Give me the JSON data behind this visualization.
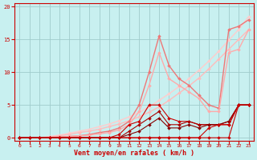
{
  "xlabel": "Vent moyen/en rafales ( km/h )",
  "xlim": [
    -0.5,
    23.5
  ],
  "ylim": [
    -0.5,
    20.5
  ],
  "yticks": [
    0,
    5,
    10,
    15,
    20
  ],
  "xticks": [
    0,
    1,
    2,
    3,
    4,
    5,
    6,
    7,
    8,
    9,
    10,
    11,
    12,
    13,
    14,
    15,
    16,
    17,
    18,
    19,
    20,
    21,
    22,
    23
  ],
  "background_color": "#c8f0f0",
  "grid_color": "#a0cccc",
  "lines": [
    {
      "x": [
        0,
        1,
        2,
        3,
        4,
        5,
        6,
        7,
        8,
        9,
        10,
        11,
        12,
        13,
        14,
        15,
        16,
        17,
        18,
        19,
        20,
        21,
        22,
        23
      ],
      "y": [
        0,
        0,
        0,
        0.2,
        0.4,
        0.7,
        1.0,
        1.3,
        1.7,
        2.1,
        2.6,
        3.2,
        3.9,
        4.7,
        5.7,
        6.7,
        7.8,
        9.0,
        10.3,
        11.7,
        13.2,
        14.9,
        16.5,
        18.5
      ],
      "color": "#ffcccc",
      "lw": 1.0,
      "ms": 2.0
    },
    {
      "x": [
        0,
        1,
        2,
        3,
        4,
        5,
        6,
        7,
        8,
        9,
        10,
        11,
        12,
        13,
        14,
        15,
        16,
        17,
        18,
        19,
        20,
        21,
        22,
        23
      ],
      "y": [
        0,
        0,
        0,
        0.1,
        0.3,
        0.5,
        0.8,
        1.0,
        1.3,
        1.7,
        2.1,
        2.6,
        3.2,
        3.9,
        4.7,
        5.7,
        6.8,
        7.9,
        9.1,
        10.5,
        12.0,
        13.5,
        15.0,
        16.5
      ],
      "color": "#ffbbbb",
      "lw": 1.0,
      "ms": 2.0
    },
    {
      "x": [
        0,
        1,
        2,
        3,
        4,
        5,
        6,
        7,
        8,
        9,
        10,
        11,
        12,
        13,
        14,
        15,
        16,
        17,
        18,
        19,
        20,
        21,
        22,
        23
      ],
      "y": [
        0,
        0,
        0,
        0,
        0.1,
        0.2,
        0.3,
        0.5,
        0.8,
        1.0,
        1.5,
        2.5,
        5.0,
        10.0,
        15.5,
        11.0,
        9.0,
        8.0,
        6.5,
        5.0,
        4.5,
        16.5,
        17.0,
        18.0
      ],
      "color": "#ee7777",
      "lw": 1.0,
      "ms": 2.0
    },
    {
      "x": [
        0,
        1,
        2,
        3,
        4,
        5,
        6,
        7,
        8,
        9,
        10,
        11,
        12,
        13,
        14,
        15,
        16,
        17,
        18,
        19,
        20,
        21,
        22,
        23
      ],
      "y": [
        0,
        0,
        0,
        0,
        0.1,
        0.2,
        0.3,
        0.4,
        0.6,
        0.8,
        1.2,
        2.0,
        4.0,
        8.0,
        13.0,
        9.0,
        8.0,
        7.0,
        6.0,
        4.0,
        4.0,
        13.0,
        13.5,
        16.5
      ],
      "color": "#ffaaaa",
      "lw": 1.0,
      "ms": 2.0
    },
    {
      "x": [
        0,
        1,
        2,
        3,
        4,
        5,
        6,
        7,
        8,
        9,
        10,
        11,
        12,
        13,
        14,
        15,
        16,
        17,
        18,
        19,
        20,
        21,
        22,
        23
      ],
      "y": [
        0,
        0,
        0,
        0,
        0,
        0,
        0,
        0,
        0,
        0,
        0,
        0,
        0,
        0,
        0,
        0,
        0,
        0,
        0,
        0,
        0,
        0,
        5,
        5
      ],
      "color": "#cc0000",
      "lw": 0.8,
      "ms": 2.0
    },
    {
      "x": [
        0,
        1,
        2,
        3,
        4,
        5,
        6,
        7,
        8,
        9,
        10,
        11,
        12,
        13,
        14,
        15,
        16,
        17,
        18,
        19,
        20,
        21,
        22,
        23
      ],
      "y": [
        0,
        0,
        0,
        0,
        0,
        0,
        0,
        0,
        0,
        0,
        0.5,
        2.0,
        2.5,
        5.0,
        5.0,
        3.0,
        2.5,
        2.5,
        2.0,
        2.0,
        2.0,
        2.0,
        5.0,
        5.0
      ],
      "color": "#cc0000",
      "lw": 0.8,
      "ms": 2.0
    },
    {
      "x": [
        0,
        1,
        2,
        3,
        4,
        5,
        6,
        7,
        8,
        9,
        10,
        11,
        12,
        13,
        14,
        15,
        16,
        17,
        18,
        19,
        20,
        21,
        22,
        23
      ],
      "y": [
        0,
        0,
        0,
        0,
        0,
        0,
        0,
        0,
        0,
        0,
        0,
        1.0,
        2.0,
        3.0,
        4.0,
        2.0,
        2.0,
        2.5,
        2.0,
        2.0,
        2.0,
        2.5,
        5.0,
        5.0
      ],
      "color": "#aa0000",
      "lw": 0.8,
      "ms": 2.0
    },
    {
      "x": [
        0,
        1,
        2,
        3,
        4,
        5,
        6,
        7,
        8,
        9,
        10,
        11,
        12,
        13,
        14,
        15,
        16,
        17,
        18,
        19,
        20,
        21,
        22,
        23
      ],
      "y": [
        0,
        0,
        0,
        0,
        0,
        0,
        0,
        0,
        0,
        0,
        0,
        0.5,
        1.0,
        2.0,
        3.0,
        1.5,
        1.5,
        2.0,
        1.5,
        2.0,
        2.0,
        2.5,
        5.0,
        5.0
      ],
      "color": "#880000",
      "lw": 0.8,
      "ms": 2.0
    },
    {
      "x": [
        0,
        1,
        2,
        3,
        4,
        5,
        6,
        7,
        8,
        9,
        10,
        11,
        12,
        13,
        14,
        15,
        16,
        17,
        18,
        19,
        20,
        21,
        22,
        23
      ],
      "y": [
        0,
        0,
        0,
        0,
        0,
        0,
        0,
        0,
        0,
        0,
        0,
        0,
        0,
        0,
        0,
        0,
        0,
        0,
        0,
        1.5,
        2.0,
        2.0,
        5.0,
        5.0
      ],
      "color": "#cc0000",
      "lw": 0.8,
      "ms": 2.0
    }
  ],
  "axis_color": "#cc0000",
  "tick_color": "#cc0000",
  "label_color": "#cc0000"
}
